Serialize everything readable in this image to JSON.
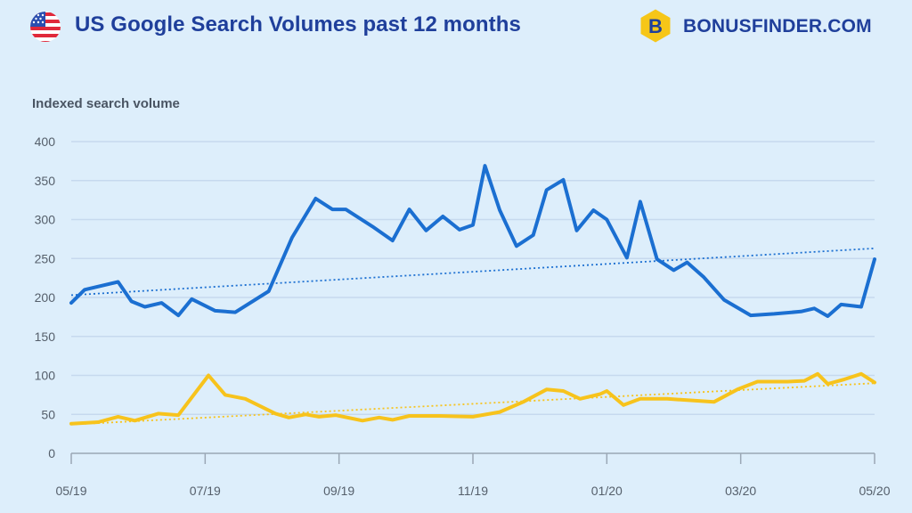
{
  "header": {
    "title": "US Google Search Volumes past 12 months",
    "brand_name": "BONUSFINDER.COM",
    "brand_letter": "B",
    "flag_icon": "us-flag-icon",
    "brand_icon": "bonusfinder-hexagon-logo-icon"
  },
  "colors": {
    "background": "#ddeefb",
    "series_blue": "#1b6fd1",
    "series_yellow": "#f7c31c",
    "title": "#1f3f9b",
    "grid": "#c6d9ee"
  },
  "chart_data": {
    "type": "line",
    "title": "US Google Search Volumes past 12 months",
    "ylabel": "Indexed search volume",
    "xlabel": "",
    "ylim": [
      0,
      400
    ],
    "yticks": [
      0,
      50,
      100,
      150,
      200,
      250,
      300,
      350,
      400
    ],
    "xlim": [
      0,
      12
    ],
    "xticks": [
      {
        "x": 0,
        "label": "05/19"
      },
      {
        "x": 2,
        "label": "07/19"
      },
      {
        "x": 4,
        "label": "09/19"
      },
      {
        "x": 6,
        "label": "11/19"
      },
      {
        "x": 8,
        "label": "01/20"
      },
      {
        "x": 10,
        "label": "03/20"
      },
      {
        "x": 12,
        "label": "05/20"
      }
    ],
    "grid": "horizontal",
    "legend": "none",
    "series": [
      {
        "color": "#1b6fd1",
        "points": [
          [
            0,
            193
          ],
          [
            0.2,
            210
          ],
          [
            0.7,
            220
          ],
          [
            0.9,
            195
          ],
          [
            1.1,
            188
          ],
          [
            1.35,
            193
          ],
          [
            1.6,
            177
          ],
          [
            1.8,
            198
          ],
          [
            2.15,
            183
          ],
          [
            2.45,
            181
          ],
          [
            2.95,
            208
          ],
          [
            3.3,
            277
          ],
          [
            3.65,
            327
          ],
          [
            3.9,
            313
          ],
          [
            4.1,
            313
          ],
          [
            4.5,
            291
          ],
          [
            4.8,
            273
          ],
          [
            5.05,
            313
          ],
          [
            5.3,
            286
          ],
          [
            5.55,
            304
          ],
          [
            5.8,
            287
          ],
          [
            6.0,
            293
          ],
          [
            6.18,
            369
          ],
          [
            6.4,
            312
          ],
          [
            6.65,
            266
          ],
          [
            6.9,
            280
          ],
          [
            7.1,
            338
          ],
          [
            7.35,
            351
          ],
          [
            7.55,
            286
          ],
          [
            7.8,
            312
          ],
          [
            8.0,
            300
          ],
          [
            8.3,
            251
          ],
          [
            8.5,
            323
          ],
          [
            8.75,
            249
          ],
          [
            9.0,
            235
          ],
          [
            9.2,
            245
          ],
          [
            9.45,
            226
          ],
          [
            9.75,
            197
          ],
          [
            10.15,
            177
          ],
          [
            10.5,
            179
          ],
          [
            10.9,
            182
          ],
          [
            11.1,
            186
          ],
          [
            11.3,
            176
          ],
          [
            11.5,
            191
          ],
          [
            11.8,
            188
          ],
          [
            12.0,
            249
          ]
        ],
        "trend": [
          [
            0,
            203
          ],
          [
            12,
            263
          ]
        ]
      },
      {
        "color": "#f7c31c",
        "points": [
          [
            0,
            38
          ],
          [
            0.4,
            40
          ],
          [
            0.7,
            47
          ],
          [
            0.95,
            42
          ],
          [
            1.3,
            51
          ],
          [
            1.6,
            49
          ],
          [
            2.05,
            100
          ],
          [
            2.3,
            75
          ],
          [
            2.6,
            70
          ],
          [
            3.05,
            51
          ],
          [
            3.25,
            46
          ],
          [
            3.5,
            50
          ],
          [
            3.7,
            47
          ],
          [
            3.95,
            49
          ],
          [
            4.35,
            42
          ],
          [
            4.6,
            46
          ],
          [
            4.8,
            43
          ],
          [
            5.05,
            48
          ],
          [
            5.5,
            48
          ],
          [
            6.0,
            47
          ],
          [
            6.4,
            53
          ],
          [
            6.75,
            66
          ],
          [
            7.1,
            82
          ],
          [
            7.35,
            80
          ],
          [
            7.6,
            70
          ],
          [
            7.9,
            76
          ],
          [
            8.0,
            80
          ],
          [
            8.25,
            62
          ],
          [
            8.5,
            70
          ],
          [
            8.9,
            70
          ],
          [
            9.6,
            66
          ],
          [
            9.95,
            82
          ],
          [
            10.25,
            92
          ],
          [
            10.7,
            92
          ],
          [
            10.95,
            93
          ],
          [
            11.15,
            102
          ],
          [
            11.3,
            89
          ],
          [
            11.55,
            95
          ],
          [
            11.8,
            102
          ],
          [
            12.0,
            91
          ]
        ],
        "trend": [
          [
            0,
            37
          ],
          [
            12,
            90
          ]
        ]
      }
    ]
  }
}
